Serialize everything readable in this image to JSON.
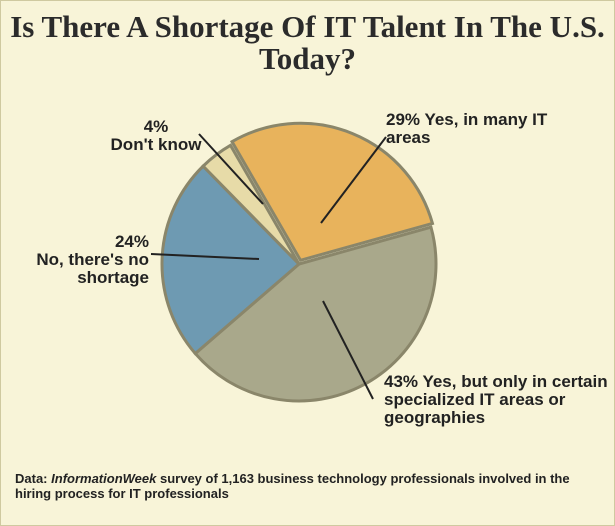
{
  "chart_data": {
    "type": "pie",
    "title": "Is There A Shortage Of IT Talent In The U.S. Today?",
    "categories": [
      "Yes, in many IT areas",
      "Yes, but only in certain specialized IT areas or geographies",
      "No, there's no shortage",
      "Don't know"
    ],
    "values": [
      29,
      43,
      24,
      4
    ],
    "value_labels": [
      "29%",
      "43%",
      "24%",
      "4%"
    ],
    "colors": [
      "#e8b35c",
      "#a9a88b",
      "#6e9ab2",
      "#e7dba8"
    ],
    "source": {
      "prefix": "Data:",
      "publication": "InformationWeek",
      "text": "survey of 1,163 business technology professionals involved in the hiring process for IT professionals"
    }
  }
}
